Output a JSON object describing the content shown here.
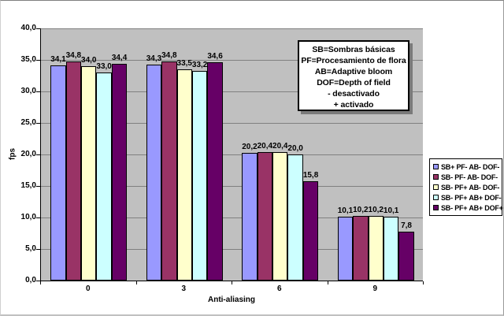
{
  "chart_data": {
    "type": "bar",
    "title": "",
    "xlabel": "Anti-aliasing",
    "ylabel": "fps",
    "categories": [
      "0",
      "3",
      "6",
      "9"
    ],
    "series": [
      {
        "name": "SB+ PF- AB- DOF-",
        "color": "#9999FF",
        "values": [
          34.1,
          34.3,
          20.2,
          10.1
        ],
        "labels": [
          "34,1",
          "34,3",
          "20,2",
          "10,1"
        ]
      },
      {
        "name": "SB- PF- AB- DOF-",
        "color": "#993366",
        "values": [
          34.8,
          34.8,
          20.4,
          10.2
        ],
        "labels": [
          "34,8",
          "34,8",
          "20,4",
          "10,2"
        ]
      },
      {
        "name": "SB- PF+ AB- DOF-",
        "color": "#FFFFCC",
        "values": [
          34.0,
          33.5,
          20.4,
          10.2
        ],
        "labels": [
          "34,0",
          "33,5",
          "20,4",
          "10,2"
        ]
      },
      {
        "name": "SB- PF+ AB+ DOF-",
        "color": "#CCFFFF",
        "values": [
          33.0,
          33.2,
          20.0,
          10.1
        ],
        "labels": [
          "33,0",
          "33,2",
          "20,0",
          "10,1"
        ]
      },
      {
        "name": "SB- PF+ AB+ DOF+",
        "color": "#660066",
        "values": [
          34.4,
          34.6,
          15.8,
          7.8
        ],
        "labels": [
          "34,4",
          "34,6",
          "15,8",
          "7,8"
        ]
      }
    ],
    "y_ticks": [
      "40,0",
      "35,0",
      "30,0",
      "25,0",
      "20,0",
      "15,0",
      "10,0",
      "5,0",
      "0,0"
    ],
    "ylim": [
      0,
      40
    ],
    "y_step": 5,
    "grid": true,
    "legend_position": "right",
    "plot_bg": "#C0C0C0",
    "gridline_color": "#808080",
    "axis_color": "#000000",
    "chart_bg": "#FFFFFF"
  },
  "annotation": {
    "lines": [
      "SB=Sombras básicas",
      "PF=Procesamiento de flora",
      "AB=Adaptive bloom",
      "DOF=Depth of field",
      "- desactivado",
      "+ activado"
    ]
  }
}
